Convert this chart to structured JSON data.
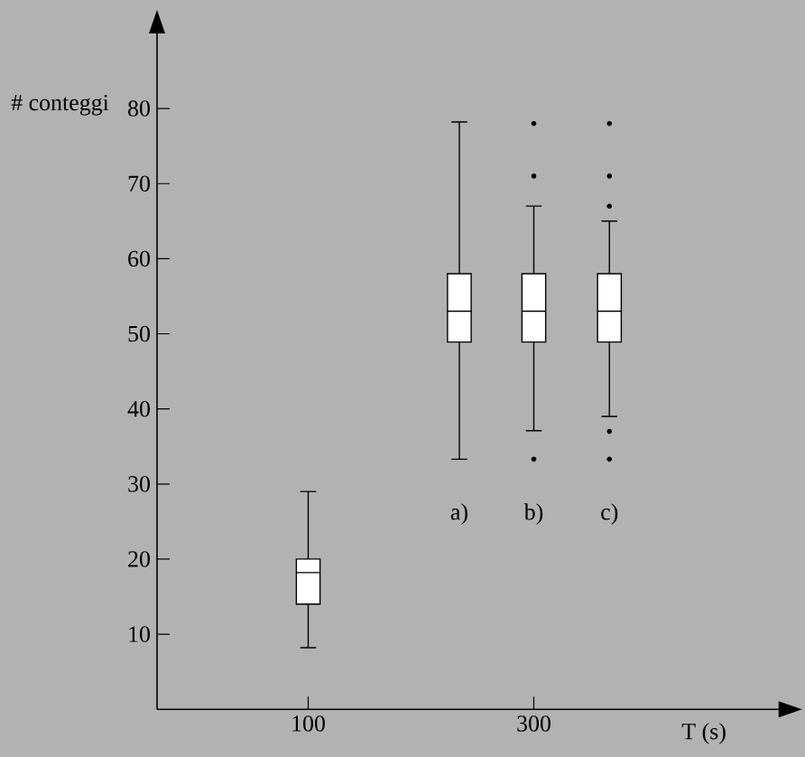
{
  "chart_data": {
    "type": "box",
    "xlabel": "T (s)",
    "ylabel": "# conteggi",
    "x": [
      100,
      234,
      300,
      367
    ],
    "color": "#ffffff",
    "boxes": [
      {
        "low": 8.2,
        "q1": 14,
        "median": 18.2,
        "q3": 20,
        "high": 29
      },
      {
        "low": 33.3,
        "q1": 48.9,
        "median": 53,
        "q3": 58,
        "high": 78.2
      },
      {
        "low": 37.1,
        "q1": 48.9,
        "median": 53,
        "q3": 58,
        "high": 67,
        "outliers": [
          78,
          71,
          33.3
        ]
      },
      {
        "low": 39,
        "q1": 48.9,
        "median": 53,
        "q3": 58,
        "high": 65,
        "outliers": [
          78,
          71,
          67,
          37,
          33.3
        ]
      }
    ],
    "annotations": [
      "a)",
      "b)",
      "c)"
    ],
    "xlim": [
      -34,
      517
    ],
    "ylim": [
      0,
      90
    ],
    "xticks": [
      100,
      300
    ],
    "yticks": [
      10,
      20,
      30,
      40,
      50,
      60,
      70,
      80
    ]
  }
}
